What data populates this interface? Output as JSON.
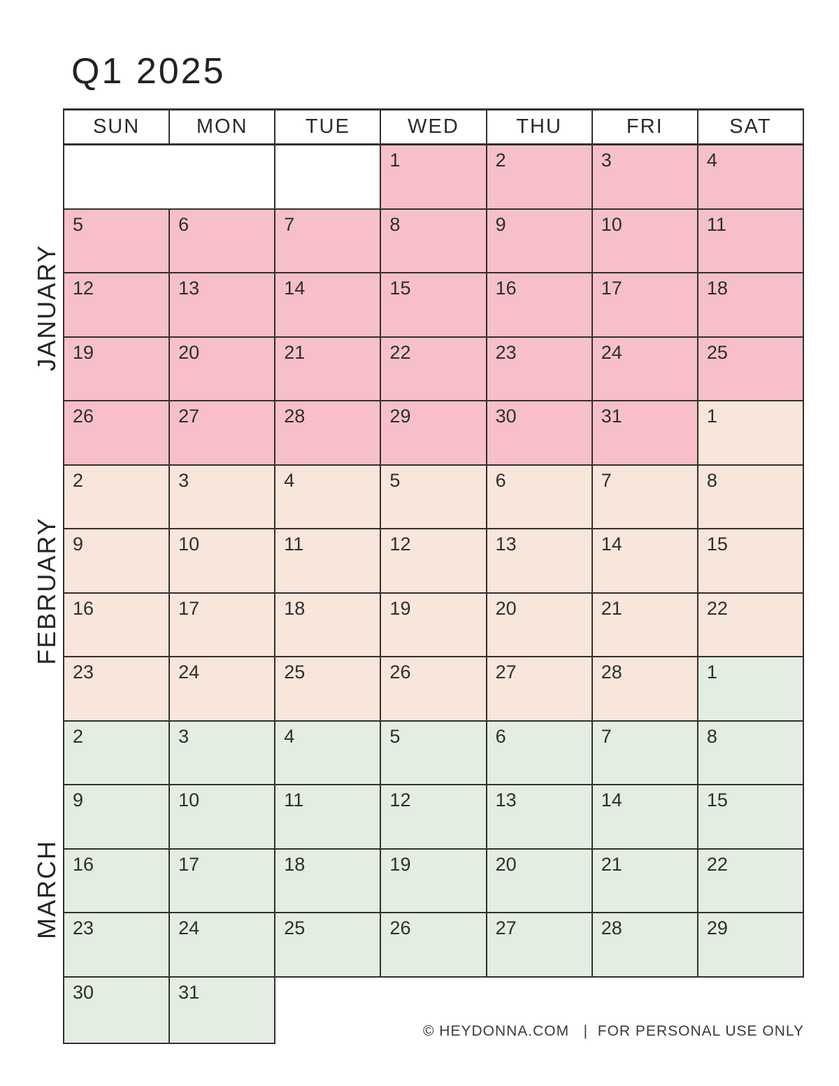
{
  "title": "Q1 2025",
  "weekdays": [
    "SUN",
    "MON",
    "TUE",
    "WED",
    "THU",
    "FRI",
    "SAT"
  ],
  "months": [
    {
      "key": "jan",
      "name": "JANUARY"
    },
    {
      "key": "feb",
      "name": "FEBRUARY"
    },
    {
      "key": "mar",
      "name": "MARCH"
    }
  ],
  "colors": {
    "jan": "#f7c0c8",
    "feb": "#f9e6db",
    "mar": "#e3ede0",
    "border": "#333030",
    "text": "#2e2e2e"
  },
  "weeks": [
    {
      "cells": [
        {
          "type": "empty",
          "span": 2
        },
        {
          "type": "empty"
        },
        {
          "day": 1,
          "m": "jan"
        },
        {
          "day": 2,
          "m": "jan"
        },
        {
          "day": 3,
          "m": "jan"
        },
        {
          "day": 4,
          "m": "jan"
        }
      ]
    },
    {
      "cells": [
        {
          "day": 5,
          "m": "jan"
        },
        {
          "day": 6,
          "m": "jan"
        },
        {
          "day": 7,
          "m": "jan"
        },
        {
          "day": 8,
          "m": "jan"
        },
        {
          "day": 9,
          "m": "jan"
        },
        {
          "day": 10,
          "m": "jan"
        },
        {
          "day": 11,
          "m": "jan"
        }
      ]
    },
    {
      "cells": [
        {
          "day": 12,
          "m": "jan"
        },
        {
          "day": 13,
          "m": "jan"
        },
        {
          "day": 14,
          "m": "jan"
        },
        {
          "day": 15,
          "m": "jan"
        },
        {
          "day": 16,
          "m": "jan"
        },
        {
          "day": 17,
          "m": "jan"
        },
        {
          "day": 18,
          "m": "jan"
        }
      ]
    },
    {
      "cells": [
        {
          "day": 19,
          "m": "jan"
        },
        {
          "day": 20,
          "m": "jan"
        },
        {
          "day": 21,
          "m": "jan"
        },
        {
          "day": 22,
          "m": "jan"
        },
        {
          "day": 23,
          "m": "jan"
        },
        {
          "day": 24,
          "m": "jan"
        },
        {
          "day": 25,
          "m": "jan"
        }
      ]
    },
    {
      "cells": [
        {
          "day": 26,
          "m": "jan"
        },
        {
          "day": 27,
          "m": "jan"
        },
        {
          "day": 28,
          "m": "jan"
        },
        {
          "day": 29,
          "m": "jan"
        },
        {
          "day": 30,
          "m": "jan"
        },
        {
          "day": 31,
          "m": "jan"
        },
        {
          "day": 1,
          "m": "feb"
        }
      ]
    },
    {
      "cells": [
        {
          "day": 2,
          "m": "feb"
        },
        {
          "day": 3,
          "m": "feb"
        },
        {
          "day": 4,
          "m": "feb"
        },
        {
          "day": 5,
          "m": "feb"
        },
        {
          "day": 6,
          "m": "feb"
        },
        {
          "day": 7,
          "m": "feb"
        },
        {
          "day": 8,
          "m": "feb"
        }
      ]
    },
    {
      "cells": [
        {
          "day": 9,
          "m": "feb"
        },
        {
          "day": 10,
          "m": "feb"
        },
        {
          "day": 11,
          "m": "feb"
        },
        {
          "day": 12,
          "m": "feb"
        },
        {
          "day": 13,
          "m": "feb"
        },
        {
          "day": 14,
          "m": "feb"
        },
        {
          "day": 15,
          "m": "feb"
        }
      ]
    },
    {
      "cells": [
        {
          "day": 16,
          "m": "feb"
        },
        {
          "day": 17,
          "m": "feb"
        },
        {
          "day": 18,
          "m": "feb"
        },
        {
          "day": 19,
          "m": "feb"
        },
        {
          "day": 20,
          "m": "feb"
        },
        {
          "day": 21,
          "m": "feb"
        },
        {
          "day": 22,
          "m": "feb"
        }
      ]
    },
    {
      "cells": [
        {
          "day": 23,
          "m": "feb"
        },
        {
          "day": 24,
          "m": "feb"
        },
        {
          "day": 25,
          "m": "feb"
        },
        {
          "day": 26,
          "m": "feb"
        },
        {
          "day": 27,
          "m": "feb"
        },
        {
          "day": 28,
          "m": "feb"
        },
        {
          "day": 1,
          "m": "mar"
        }
      ]
    },
    {
      "cells": [
        {
          "day": 2,
          "m": "mar"
        },
        {
          "day": 3,
          "m": "mar"
        },
        {
          "day": 4,
          "m": "mar"
        },
        {
          "day": 5,
          "m": "mar"
        },
        {
          "day": 6,
          "m": "mar"
        },
        {
          "day": 7,
          "m": "mar"
        },
        {
          "day": 8,
          "m": "mar"
        }
      ]
    },
    {
      "cells": [
        {
          "day": 9,
          "m": "mar"
        },
        {
          "day": 10,
          "m": "mar"
        },
        {
          "day": 11,
          "m": "mar"
        },
        {
          "day": 12,
          "m": "mar"
        },
        {
          "day": 13,
          "m": "mar"
        },
        {
          "day": 14,
          "m": "mar"
        },
        {
          "day": 15,
          "m": "mar"
        }
      ]
    },
    {
      "cells": [
        {
          "day": 16,
          "m": "mar"
        },
        {
          "day": 17,
          "m": "mar"
        },
        {
          "day": 18,
          "m": "mar"
        },
        {
          "day": 19,
          "m": "mar"
        },
        {
          "day": 20,
          "m": "mar"
        },
        {
          "day": 21,
          "m": "mar"
        },
        {
          "day": 22,
          "m": "mar"
        }
      ]
    },
    {
      "cells": [
        {
          "day": 23,
          "m": "mar"
        },
        {
          "day": 24,
          "m": "mar"
        },
        {
          "day": 25,
          "m": "mar"
        },
        {
          "day": 26,
          "m": "mar"
        },
        {
          "day": 27,
          "m": "mar"
        },
        {
          "day": 28,
          "m": "mar"
        },
        {
          "day": 29,
          "m": "mar"
        }
      ]
    },
    {
      "cells": [
        {
          "day": 30,
          "m": "mar"
        },
        {
          "day": 31,
          "m": "mar"
        },
        {
          "type": "absent"
        },
        {
          "type": "absent"
        },
        {
          "type": "absent"
        },
        {
          "type": "absent"
        },
        {
          "type": "absent"
        }
      ]
    }
  ],
  "footer": "© HEYDONNA.COM   |  FOR PERSONAL USE ONLY"
}
